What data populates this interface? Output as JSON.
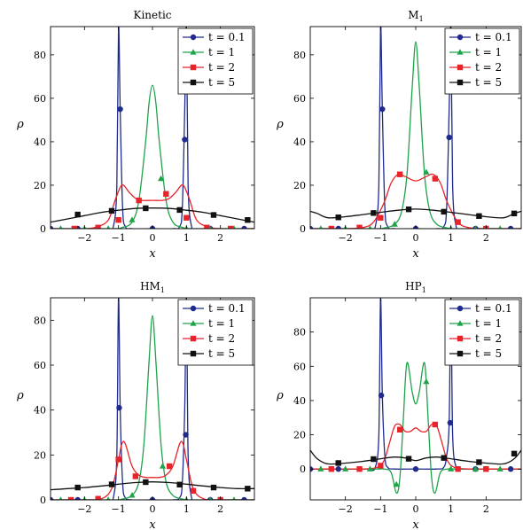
{
  "chart_data": [
    {
      "type": "line",
      "title": "Kinetic",
      "xlabel": "x",
      "ylabel": "ρ",
      "xlim": [
        -3,
        3
      ],
      "ylim": [
        0,
        93
      ],
      "xticks": [
        -2,
        -1,
        0,
        1,
        2
      ],
      "yticks": [
        0,
        20,
        40,
        60,
        80
      ],
      "legend_position": "top-right",
      "series": [
        {
          "name": "t = 0.1",
          "color": "#1f2a8c",
          "marker": "circle",
          "x": [
            -3,
            -2.5,
            -2,
            -1.5,
            -1.3,
            -1.15,
            -1.05,
            -1.0,
            -0.95,
            -0.88,
            -0.8,
            -0.6,
            0,
            0.6,
            0.8,
            0.88,
            0.95,
            1.0,
            1.05,
            1.15,
            1.3,
            1.5,
            2,
            2.5,
            3
          ],
          "y": [
            0,
            0,
            0,
            0,
            0,
            1,
            20,
            93,
            55,
            10,
            1,
            0,
            0,
            0,
            1,
            10,
            55,
            93,
            20,
            1,
            0,
            0,
            0,
            0,
            0
          ],
          "marker_x": [
            -3,
            -2.2,
            -0.95,
            0,
            0.95,
            1.7,
            2.7
          ],
          "marker_y": [
            0,
            0,
            55,
            0,
            41,
            0,
            0
          ]
        },
        {
          "name": "t = 1",
          "color": "#1fa34a",
          "marker": "triangle",
          "x": [
            -3,
            -1.2,
            -0.9,
            -0.6,
            -0.4,
            -0.2,
            -0.1,
            0,
            0.1,
            0.2,
            0.4,
            0.6,
            0.9,
            1.2,
            3
          ],
          "y": [
            0,
            0,
            0.5,
            3,
            13,
            40,
            58,
            66,
            58,
            40,
            13,
            3,
            0.5,
            0,
            0
          ],
          "marker_x": [
            -2.7,
            -2.0,
            -1.3,
            -0.6,
            0.25,
            1.0,
            1.7,
            2.4
          ],
          "marker_y": [
            0,
            0,
            0,
            4,
            23,
            0,
            0,
            0
          ]
        },
        {
          "name": "t = 2",
          "color": "#e8232a",
          "marker": "square",
          "x": [
            -3,
            -2,
            -1.6,
            -1.3,
            -1.1,
            -0.95,
            -0.85,
            -0.7,
            -0.5,
            -0.3,
            0,
            0.3,
            0.5,
            0.7,
            0.85,
            0.95,
            1.1,
            1.3,
            1.6,
            2,
            3
          ],
          "y": [
            0,
            0,
            1,
            4,
            13,
            19,
            20,
            17,
            14,
            13,
            13,
            13,
            14,
            17,
            20,
            19,
            13,
            4,
            1,
            0,
            0
          ],
          "marker_x": [
            -2.3,
            -1.6,
            -1.0,
            -0.4,
            0.4,
            1.0,
            1.6,
            2.3
          ],
          "marker_y": [
            0,
            0.5,
            4,
            13,
            16,
            5,
            0.5,
            0
          ]
        },
        {
          "name": "t = 5",
          "color": "#111111",
          "marker": "square",
          "x": [
            -3,
            -2.5,
            -2,
            -1.5,
            -1,
            -0.5,
            0,
            0.5,
            1,
            1.5,
            2,
            2.5,
            3
          ],
          "y": [
            3,
            4.5,
            6,
            7.5,
            8.5,
            9.3,
            9.5,
            9.3,
            8.5,
            7.5,
            6,
            4.5,
            3
          ],
          "marker_x": [
            -2.2,
            -1.2,
            -0.2,
            0.8,
            1.8,
            2.8
          ],
          "marker_y": [
            6.5,
            8.2,
            9.4,
            8.6,
            6.3,
            4
          ]
        }
      ]
    },
    {
      "type": "line",
      "title": "M",
      "title_sub": "1",
      "xlabel": "x",
      "ylabel": "ρ",
      "xlim": [
        -3,
        3
      ],
      "ylim": [
        0,
        93
      ],
      "xticks": [
        -2,
        -1,
        0,
        1,
        2
      ],
      "yticks": [
        0,
        20,
        40,
        60,
        80
      ],
      "legend_position": "top-right",
      "series": [
        {
          "name": "t = 0.1",
          "color": "#1f2a8c",
          "marker": "circle",
          "x": [
            -3,
            -2.5,
            -2,
            -1.5,
            -1.3,
            -1.15,
            -1.05,
            -1.0,
            -0.95,
            -0.88,
            -0.8,
            -0.6,
            0,
            0.6,
            0.8,
            0.88,
            0.95,
            1.0,
            1.05,
            1.15,
            1.3,
            1.5,
            2,
            2.5,
            3
          ],
          "y": [
            0,
            0,
            0,
            0,
            0,
            1,
            20,
            93,
            55,
            10,
            1,
            0,
            0,
            0,
            1,
            10,
            55,
            93,
            20,
            1,
            0,
            0,
            0,
            0,
            0
          ],
          "marker_x": [
            -3,
            -2.2,
            -0.95,
            0,
            0.95,
            1.7,
            2.7
          ],
          "marker_y": [
            0,
            0,
            55,
            0,
            42,
            0,
            0
          ]
        },
        {
          "name": "t = 1",
          "color": "#1fa34a",
          "marker": "triangle",
          "x": [
            -3,
            -1.2,
            -0.9,
            -0.6,
            -0.4,
            -0.25,
            -0.1,
            0,
            0.1,
            0.25,
            0.4,
            0.6,
            0.9,
            1.2,
            3
          ],
          "y": [
            0,
            0,
            0.3,
            2,
            8,
            25,
            65,
            86,
            65,
            25,
            8,
            2,
            0.3,
            0,
            0
          ],
          "marker_x": [
            -2.7,
            -2.0,
            -1.3,
            -0.6,
            0.3,
            1.0,
            1.7,
            2.4
          ],
          "marker_y": [
            0,
            0,
            0,
            2,
            26,
            0,
            0,
            0
          ]
        },
        {
          "name": "t = 2",
          "color": "#e8232a",
          "marker": "square",
          "x": [
            -3,
            -2,
            -1.5,
            -1.2,
            -0.9,
            -0.7,
            -0.5,
            -0.3,
            0,
            0.3,
            0.5,
            0.7,
            0.9,
            1.2,
            1.5,
            2,
            3
          ],
          "y": [
            0,
            0,
            0.5,
            3,
            12,
            21,
            25,
            24,
            22,
            24,
            25,
            21,
            12,
            3,
            0.5,
            0,
            0
          ],
          "marker_x": [
            -2.4,
            -1.6,
            -1.0,
            -0.45,
            0.55,
            1.2,
            2.0
          ],
          "marker_y": [
            0,
            0.5,
            5,
            25,
            23,
            3,
            0
          ]
        },
        {
          "name": "t = 5",
          "color": "#111111",
          "marker": "square",
          "x": [
            -3,
            -2.8,
            -2.5,
            -2,
            -1.5,
            -1,
            -0.5,
            0,
            0.5,
            1,
            1.5,
            2,
            2.5,
            2.8,
            3
          ],
          "y": [
            8,
            7,
            5,
            5.5,
            6.5,
            7.5,
            8.5,
            9,
            8.5,
            7.5,
            6.5,
            5.5,
            5,
            7,
            8
          ],
          "marker_x": [
            -2.2,
            -1.2,
            -0.2,
            0.8,
            1.8,
            2.8
          ],
          "marker_y": [
            5.2,
            7.2,
            8.9,
            7.8,
            5.8,
            7
          ]
        }
      ]
    },
    {
      "type": "line",
      "title": "HM",
      "title_sub": "1",
      "xlabel": "x",
      "ylabel": "ρ",
      "xlim": [
        -3,
        3
      ],
      "ylim": [
        0,
        90
      ],
      "xticks": [
        -2,
        -1,
        0,
        1,
        2
      ],
      "yticks": [
        0,
        20,
        40,
        60,
        80
      ],
      "legend_position": "top-right",
      "series": [
        {
          "name": "t = 0.1",
          "color": "#1f2a8c",
          "marker": "circle",
          "x": [
            -3,
            -2.5,
            -2,
            -1.5,
            -1.3,
            -1.15,
            -1.05,
            -1.0,
            -0.95,
            -0.88,
            -0.8,
            -0.6,
            0,
            0.6,
            0.8,
            0.88,
            0.95,
            1.0,
            1.05,
            1.15,
            1.3,
            1.5,
            2,
            2.5,
            3
          ],
          "y": [
            0,
            0,
            0,
            0,
            0,
            1,
            20,
            90,
            41,
            8,
            1,
            0,
            0,
            0,
            1,
            8,
            41,
            90,
            20,
            1,
            0,
            0,
            0,
            0,
            0
          ],
          "marker_x": [
            -3,
            -2.2,
            -0.98,
            0,
            0.98,
            1.7,
            2.7
          ],
          "marker_y": [
            0,
            0,
            41,
            0,
            29,
            0,
            0
          ]
        },
        {
          "name": "t = 1",
          "color": "#1fa34a",
          "marker": "triangle",
          "x": [
            -3,
            -1.2,
            -0.9,
            -0.6,
            -0.4,
            -0.25,
            -0.1,
            0,
            0.1,
            0.25,
            0.4,
            0.6,
            0.9,
            1.2,
            3
          ],
          "y": [
            0,
            0,
            0.3,
            2,
            8,
            25,
            62,
            82,
            62,
            25,
            8,
            2,
            0.3,
            0,
            0
          ],
          "marker_x": [
            -2.7,
            -2.0,
            -1.3,
            -0.6,
            0.3,
            1.0,
            1.7,
            2.4
          ],
          "marker_y": [
            0,
            0,
            0,
            2,
            15,
            0,
            0,
            0
          ]
        },
        {
          "name": "t = 2",
          "color": "#e8232a",
          "marker": "square",
          "x": [
            -3,
            -2,
            -1.5,
            -1.2,
            -1.0,
            -0.9,
            -0.8,
            -0.6,
            -0.4,
            -0.2,
            0,
            0.2,
            0.4,
            0.6,
            0.8,
            0.9,
            1.0,
            1.2,
            1.5,
            2,
            3
          ],
          "y": [
            0,
            0,
            0.5,
            5,
            18,
            25,
            25,
            15,
            11,
            10,
            10,
            10,
            11,
            15,
            25,
            25,
            18,
            5,
            0.5,
            0,
            0
          ],
          "marker_x": [
            -2.4,
            -1.6,
            -1.0,
            -0.5,
            0.5,
            1.2,
            2.0
          ],
          "marker_y": [
            0,
            0.5,
            18,
            10.5,
            15,
            4,
            0
          ]
        },
        {
          "name": "t = 5",
          "color": "#111111",
          "marker": "square",
          "x": [
            -3,
            -2.5,
            -2,
            -1.5,
            -1,
            -0.5,
            0,
            0.5,
            1,
            1.5,
            2,
            2.5,
            3
          ],
          "y": [
            4.5,
            5,
            5.5,
            6.2,
            7,
            7.7,
            8,
            7.7,
            7,
            6.2,
            5.5,
            5,
            5
          ],
          "marker_x": [
            -2.2,
            -1.2,
            -0.2,
            0.8,
            1.8,
            2.8
          ],
          "marker_y": [
            5.5,
            6.9,
            7.9,
            6.8,
            5.5,
            5
          ]
        }
      ]
    },
    {
      "type": "line",
      "title": "HP",
      "title_sub": "1",
      "xlabel": "x",
      "ylabel": "ρ",
      "xlim": [
        -3,
        3
      ],
      "ylim": [
        -18,
        100
      ],
      "xticks": [
        -2,
        -1,
        0,
        1,
        2
      ],
      "yticks": [
        0,
        20,
        40,
        60,
        80
      ],
      "legend_position": "top-right",
      "series": [
        {
          "name": "t = 0.1",
          "color": "#1f2a8c",
          "marker": "circle",
          "x": [
            -3,
            -2.5,
            -2,
            -1.5,
            -1.3,
            -1.15,
            -1.05,
            -1.0,
            -0.95,
            -0.88,
            -0.8,
            -0.6,
            0,
            0.6,
            0.8,
            0.88,
            0.95,
            1.0,
            1.05,
            1.15,
            1.3,
            1.5,
            2,
            2.5,
            3
          ],
          "y": [
            0,
            0,
            0,
            0,
            0,
            1,
            20,
            100,
            43,
            8,
            1,
            0,
            0,
            0,
            1,
            8,
            27,
            100,
            20,
            1,
            0,
            0,
            0,
            0,
            0
          ],
          "marker_x": [
            -3,
            -2.2,
            -0.98,
            0,
            0.98,
            1.7,
            2.7
          ],
          "marker_y": [
            0,
            0,
            43,
            0,
            27,
            0,
            0
          ]
        },
        {
          "name": "t = 1",
          "color": "#1fa34a",
          "marker": "triangle",
          "x": [
            -3,
            -1.2,
            -0.9,
            -0.7,
            -0.55,
            -0.45,
            -0.35,
            -0.25,
            -0.1,
            0,
            0.1,
            0.25,
            0.35,
            0.45,
            0.55,
            0.7,
            0.9,
            1.2,
            3
          ],
          "y": [
            0,
            0,
            0,
            -2,
            -14,
            -5,
            30,
            62,
            45,
            38,
            45,
            62,
            30,
            -5,
            -14,
            -2,
            0,
            0,
            0
          ],
          "marker_x": [
            -2.7,
            -2.0,
            -1.3,
            -0.55,
            0.3,
            1.0,
            1.7,
            2.4
          ],
          "marker_y": [
            0,
            0,
            0,
            -9,
            51,
            0,
            0,
            0
          ]
        },
        {
          "name": "t = 2",
          "color": "#e8232a",
          "marker": "square",
          "x": [
            -3,
            -2,
            -1.5,
            -1.1,
            -0.9,
            -0.75,
            -0.6,
            -0.45,
            -0.3,
            -0.15,
            0,
            0.15,
            0.3,
            0.45,
            0.6,
            0.75,
            0.9,
            1.1,
            1.5,
            2,
            3
          ],
          "y": [
            0,
            0,
            0,
            1,
            5,
            15,
            25,
            26,
            22,
            22,
            24,
            22,
            22,
            26,
            25,
            15,
            5,
            1,
            0,
            0,
            0
          ],
          "marker_x": [
            -2.4,
            -1.6,
            -1.0,
            -0.45,
            0.55,
            1.2,
            2.0
          ],
          "marker_y": [
            0,
            0,
            2,
            23,
            26,
            0,
            0
          ]
        },
        {
          "name": "t = 5",
          "color": "#111111",
          "marker": "square",
          "x": [
            -3,
            -2.8,
            -2.5,
            -2,
            -1.5,
            -1,
            -0.6,
            -0.3,
            0,
            0.3,
            0.6,
            1,
            1.5,
            2,
            2.5,
            2.8,
            3
          ],
          "y": [
            11,
            6,
            3,
            3.5,
            4.5,
            6,
            7,
            6.5,
            5,
            6.5,
            7,
            6,
            4.5,
            3.5,
            3,
            6,
            11
          ],
          "marker_x": [
            -2.2,
            -1.2,
            -0.2,
            0.8,
            1.8,
            2.8
          ],
          "marker_y": [
            3.5,
            5.8,
            6,
            6.5,
            4,
            9
          ]
        }
      ]
    }
  ]
}
